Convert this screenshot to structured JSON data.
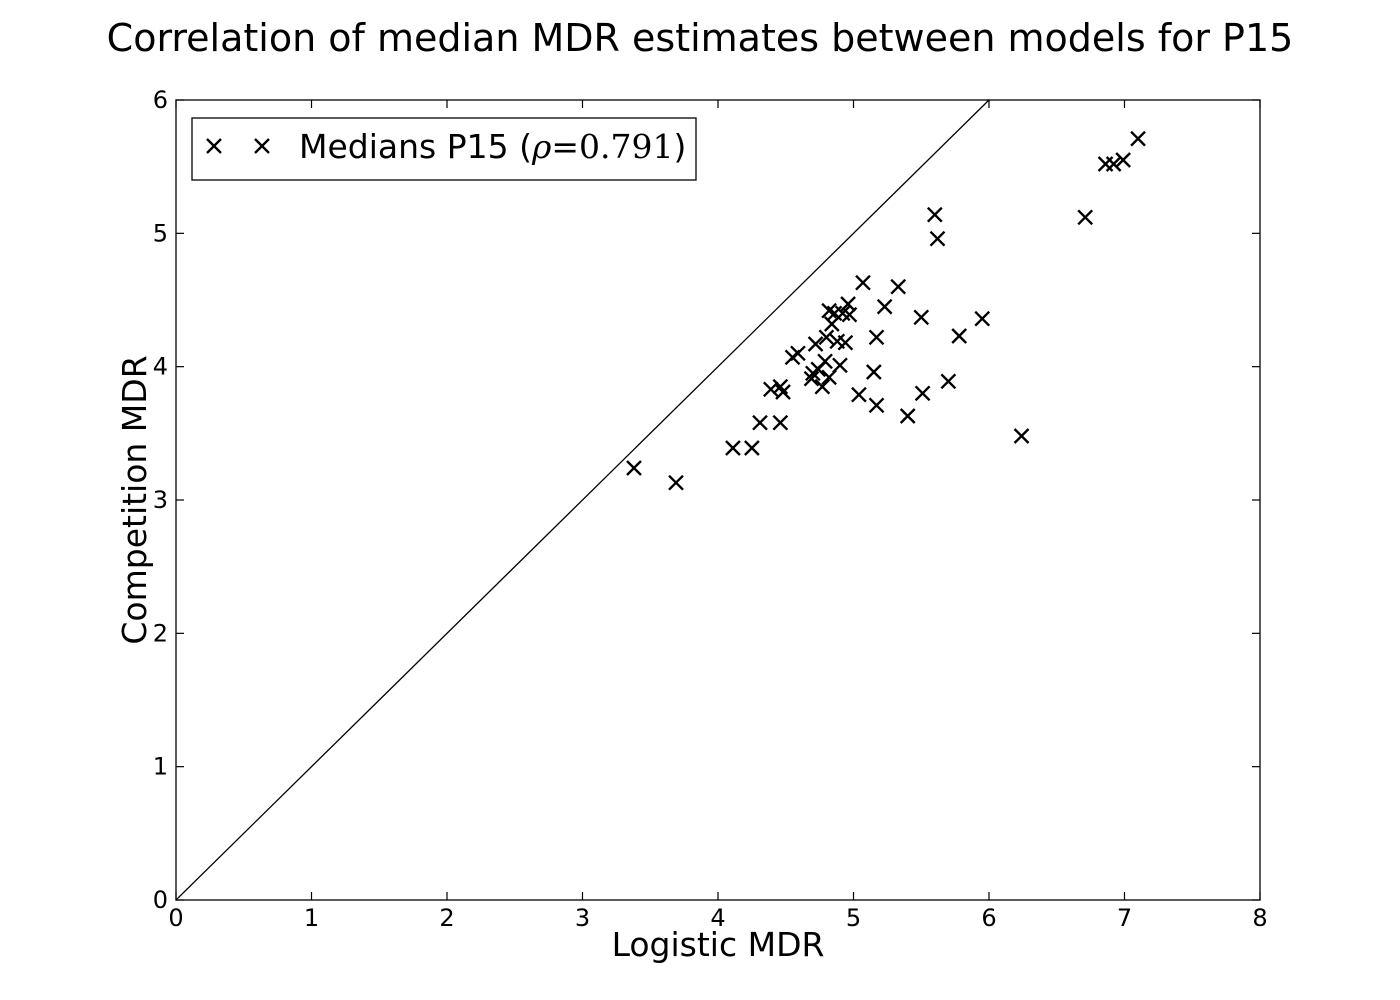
{
  "chart_data": {
    "type": "scatter",
    "title": "Correlation of median MDR estimates between models for P15",
    "xlabel": "Logistic MDR",
    "ylabel": "Competition MDR",
    "xlim": [
      0,
      8
    ],
    "ylim": [
      0,
      6
    ],
    "x_ticks": [
      "0",
      "1",
      "2",
      "3",
      "4",
      "5",
      "6",
      "7",
      "8"
    ],
    "y_ticks": [
      "0",
      "1",
      "2",
      "3",
      "4",
      "5",
      "6"
    ],
    "grid": false,
    "legend_position": "top-left",
    "reference_line": {
      "type": "identity",
      "from": [
        0,
        0
      ],
      "to": [
        6,
        6
      ]
    },
    "series": [
      {
        "name": "Medians P15",
        "legend_rho_symbol": "ρ",
        "legend_rho_operator": "=",
        "legend_rho_value": "0.791",
        "marker": "x",
        "color": "#000000",
        "points": [
          [
            3.38,
            3.24
          ],
          [
            3.69,
            3.13
          ],
          [
            4.11,
            3.39
          ],
          [
            4.25,
            3.39
          ],
          [
            4.31,
            3.58
          ],
          [
            4.39,
            3.83
          ],
          [
            4.46,
            3.85
          ],
          [
            4.48,
            3.81
          ],
          [
            4.46,
            3.58
          ],
          [
            4.55,
            4.07
          ],
          [
            4.59,
            4.1
          ],
          [
            4.69,
            3.91
          ],
          [
            4.7,
            3.95
          ],
          [
            4.72,
            4.17
          ],
          [
            4.74,
            3.98
          ],
          [
            4.77,
            3.85
          ],
          [
            4.79,
            4.04
          ],
          [
            4.8,
            4.22
          ],
          [
            4.82,
            3.92
          ],
          [
            4.82,
            4.42
          ],
          [
            4.84,
            4.32
          ],
          [
            4.86,
            4.4
          ],
          [
            4.88,
            4.19
          ],
          [
            4.9,
            4.01
          ],
          [
            4.92,
            4.4
          ],
          [
            4.94,
            4.18
          ],
          [
            4.96,
            4.47
          ],
          [
            4.97,
            4.39
          ],
          [
            5.04,
            3.79
          ],
          [
            5.07,
            4.63
          ],
          [
            5.15,
            3.96
          ],
          [
            5.17,
            4.22
          ],
          [
            5.17,
            3.71
          ],
          [
            5.23,
            4.45
          ],
          [
            5.33,
            4.6
          ],
          [
            5.4,
            3.63
          ],
          [
            5.5,
            4.37
          ],
          [
            5.51,
            3.8
          ],
          [
            5.6,
            5.14
          ],
          [
            5.62,
            4.96
          ],
          [
            5.7,
            3.89
          ],
          [
            5.78,
            4.23
          ],
          [
            5.95,
            4.36
          ],
          [
            6.24,
            3.48
          ],
          [
            6.71,
            5.12
          ],
          [
            6.86,
            5.52
          ],
          [
            6.92,
            5.52
          ],
          [
            6.99,
            5.55
          ],
          [
            7.1,
            5.71
          ]
        ]
      }
    ]
  }
}
